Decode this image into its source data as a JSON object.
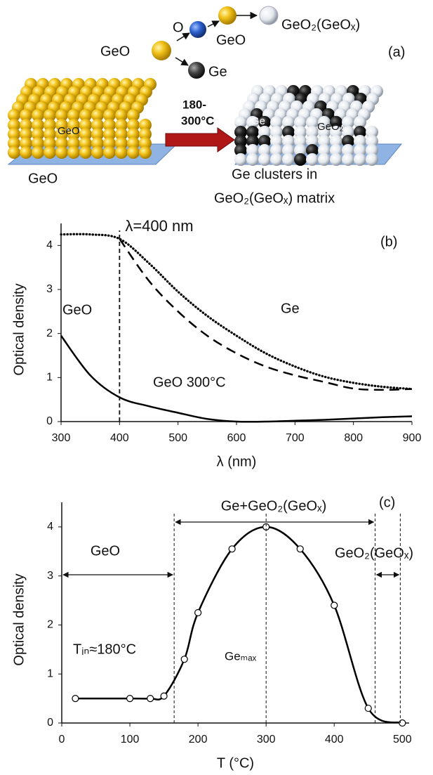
{
  "diagram": {
    "label": "(a)",
    "molecules": {
      "source": "GeO",
      "oxygen": "O",
      "germanium": "Ge",
      "intermediate": "GeO",
      "product": "GeO₂(GeOₓ)"
    },
    "temperature": [
      "180-",
      "300°C"
    ],
    "left_slab": {
      "inner": "GeO",
      "caption": "GeO"
    },
    "right_slab": {
      "ge": "Ge",
      "geo2": "GeO₂",
      "caption": [
        "Ge clusters in",
        "GeO₂(GeOₓ) matrix"
      ]
    }
  },
  "chart_data": [
    {
      "type": "line",
      "label": "(b)",
      "x_label": "λ (nm)",
      "y_label": "Optical density",
      "annotation": "λ=400 nm",
      "vline": 400,
      "x": [
        300,
        350,
        400,
        450,
        500,
        550,
        600,
        650,
        700,
        750,
        800,
        850,
        900
      ],
      "series": [
        {
          "name": "Ge",
          "color": "#000000",
          "style": "dotted",
          "values": [
            4.25,
            4.25,
            4.15,
            3.6,
            2.95,
            2.4,
            1.95,
            1.55,
            1.25,
            1.02,
            0.88,
            0.79,
            0.74
          ]
        },
        {
          "name": "GeO 300°C",
          "color": "#000000",
          "style": "dashed",
          "values": [
            null,
            null,
            4.15,
            3.2,
            2.5,
            1.95,
            1.55,
            1.25,
            1.05,
            0.9,
            0.75,
            0.72,
            0.74
          ]
        },
        {
          "name": "GeO",
          "color": "#000000",
          "style": "solid",
          "values": [
            1.95,
            1.05,
            0.55,
            0.35,
            0.2,
            0.06,
            0,
            0,
            0.02,
            0.04,
            0.07,
            0.1,
            0.12
          ]
        }
      ],
      "xlim": [
        300,
        900
      ],
      "xticks": [
        300,
        400,
        500,
        600,
        700,
        800,
        900
      ],
      "ylim": [
        0,
        4.5
      ],
      "yticks": [
        0,
        1,
        2,
        3,
        4
      ]
    },
    {
      "type": "line",
      "label": "(c)",
      "x_label": "T (°C)",
      "y_label": "Optical density",
      "markers": true,
      "x": [
        20,
        100,
        130,
        150,
        180,
        200,
        250,
        300,
        350,
        400,
        450,
        500
      ],
      "series": [
        {
          "color": "#000000",
          "values": [
            0.5,
            0.5,
            0.5,
            0.55,
            1.3,
            2.25,
            3.55,
            4.0,
            3.55,
            2.4,
            0.3,
            0
          ]
        }
      ],
      "vlines": [
        165,
        300,
        460,
        497
      ],
      "regions": [
        {
          "label": "GeO",
          "from": 0,
          "to": 165
        },
        {
          "label": "Ge+GeO₂(GeOₓ)",
          "from": 165,
          "to": 460
        },
        {
          "label": "GeO₂(GeOₓ)",
          "from": 460,
          "to": 497
        }
      ],
      "annotations": [
        "Tᵢₙ≈180°C",
        "Geₘₐₓ"
      ],
      "xlim": [
        0,
        510
      ],
      "xticks": [
        0,
        100,
        200,
        300,
        400,
        500
      ],
      "ylim": [
        0,
        4.5
      ],
      "yticks": [
        0,
        1,
        2,
        3,
        4
      ]
    }
  ]
}
